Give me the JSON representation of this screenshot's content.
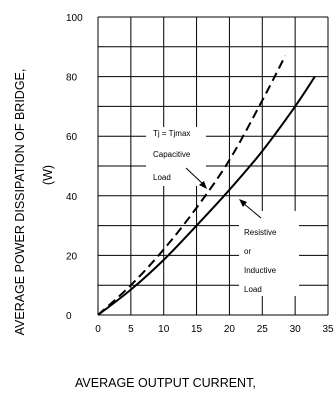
{
  "chart_data": {
    "type": "line",
    "xlabel": "AVERAGE OUTPUT CURRENT,",
    "ylabel_line1": "AVERAGE POWER DISSIPATION OF BRIDGE,",
    "ylabel_line2": "(W)",
    "xlim": [
      0,
      35
    ],
    "ylim": [
      0,
      100
    ],
    "x_ticks": [
      "0",
      "5",
      "10",
      "15",
      "20",
      "25",
      "30",
      "35"
    ],
    "y_ticks": [
      "0",
      "20",
      "40",
      "60",
      "80",
      "100"
    ],
    "grid": true,
    "series": [
      {
        "name": "Capacitive Load",
        "style": "dashed",
        "color": "#000000",
        "x": [
          0,
          5,
          10,
          15,
          20,
          25,
          28.5
        ],
        "y": [
          0,
          10,
          22,
          36,
          52,
          72,
          87
        ]
      },
      {
        "name": "Resistive or Inductive Load",
        "style": "solid",
        "color": "#000000",
        "x": [
          0,
          5,
          10,
          15,
          20,
          25,
          30,
          33
        ],
        "y": [
          0,
          8.5,
          18.5,
          30,
          42,
          55,
          70,
          80
        ]
      }
    ],
    "annotations": {
      "temp_condition": "Tj = Tjmax",
      "capacitive_line1": "Capacitive",
      "capacitive_line2": "Load",
      "resistive_line1": "Resistive",
      "resistive_line2": "or",
      "resistive_line3": "Inductive",
      "resistive_line4": "Load"
    }
  }
}
